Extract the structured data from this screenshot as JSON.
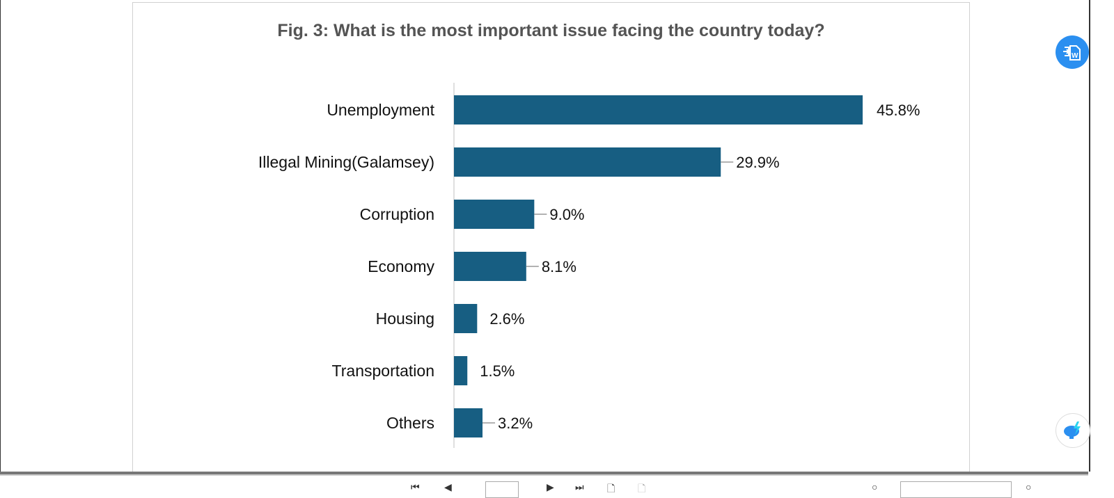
{
  "colors": {
    "bar": "#175e82",
    "title": "#545454",
    "text": "#111111",
    "fab": "#2b8ff0"
  },
  "icons": {
    "convert": "pdf-to-word-icon",
    "ai": "ai-brain-icon"
  },
  "chart_data": {
    "type": "bar",
    "orientation": "horizontal",
    "title": "Fig. 3: What is the most important issue facing the country today?",
    "categories": [
      "Unemployment",
      "Illegal Mining(Galamsey)",
      "Corruption",
      "Economy",
      "Housing",
      "Transportation",
      "Others"
    ],
    "values": [
      45.8,
      29.9,
      9.0,
      8.1,
      2.6,
      1.5,
      3.2
    ],
    "data_labels": [
      "45.8%",
      "29.9%",
      "9.0%",
      "8.1%",
      "2.6%",
      "1.5%",
      "3.2%"
    ],
    "xlabel": "",
    "ylabel": "",
    "grid": false,
    "legend": "none"
  }
}
